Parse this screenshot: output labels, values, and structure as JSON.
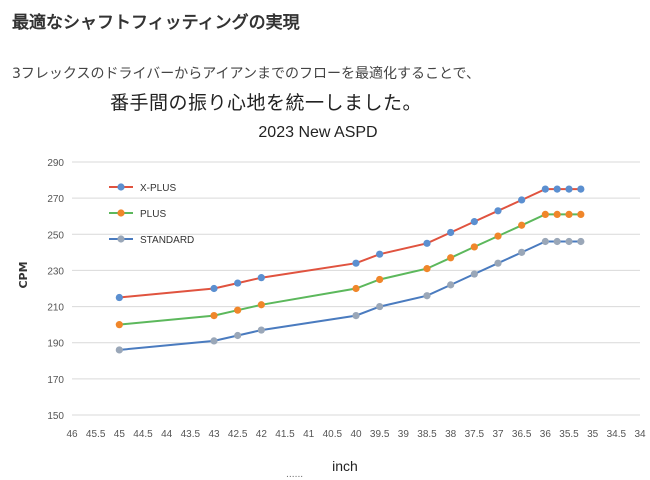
{
  "heading": "最適なシャフトフィッティングの実現",
  "lead_line1": "3フレックスのドライバーからアイアンまでのフローを最適化することで、",
  "lead_line2": "番手間の振り心地を統一しました。",
  "footnote": "......",
  "chart_data": {
    "type": "line",
    "title": "2023 New ASPD",
    "xlabel": "inch",
    "ylabel": "CPM",
    "x_reversed": true,
    "xlim": [
      46,
      34
    ],
    "ylim": [
      150,
      290
    ],
    "y_ticks": [
      150,
      170,
      190,
      210,
      230,
      250,
      270,
      290
    ],
    "x_ticks": [
      "46",
      "45.5",
      "45",
      "44.5",
      "44",
      "43.5",
      "43",
      "42.5",
      "42",
      "41.5",
      "41",
      "40.5",
      "40",
      "39.5",
      "39",
      "38.5",
      "38",
      "37.5",
      "37",
      "36.5",
      "36",
      "35.5",
      "35",
      "34.5",
      "34"
    ],
    "grid": "horizontal",
    "legend": "top-left",
    "x": [
      45,
      43,
      42.5,
      42,
      40,
      39.5,
      38.5,
      38,
      37.5,
      37,
      36.5,
      36,
      35.75,
      35.5,
      35.25
    ],
    "series": [
      {
        "name": "X-PLUS",
        "color": "#e0533f",
        "marker": "#5b8fd0",
        "values": [
          215,
          220,
          223,
          226,
          234,
          239,
          245,
          251,
          257,
          263,
          269,
          275,
          275,
          275,
          275
        ]
      },
      {
        "name": "PLUS",
        "color": "#5cb85c",
        "marker": "#f0862a",
        "values": [
          200,
          205,
          208,
          211,
          220,
          225,
          231,
          237,
          243,
          249,
          255,
          261,
          261,
          261,
          261
        ]
      },
      {
        "name": "STANDARD",
        "color": "#4a7bbf",
        "marker": "#9aa7b8",
        "values": [
          186,
          191,
          194,
          197,
          205,
          210,
          216,
          222,
          228,
          234,
          240,
          246,
          246,
          246,
          246
        ]
      }
    ]
  }
}
